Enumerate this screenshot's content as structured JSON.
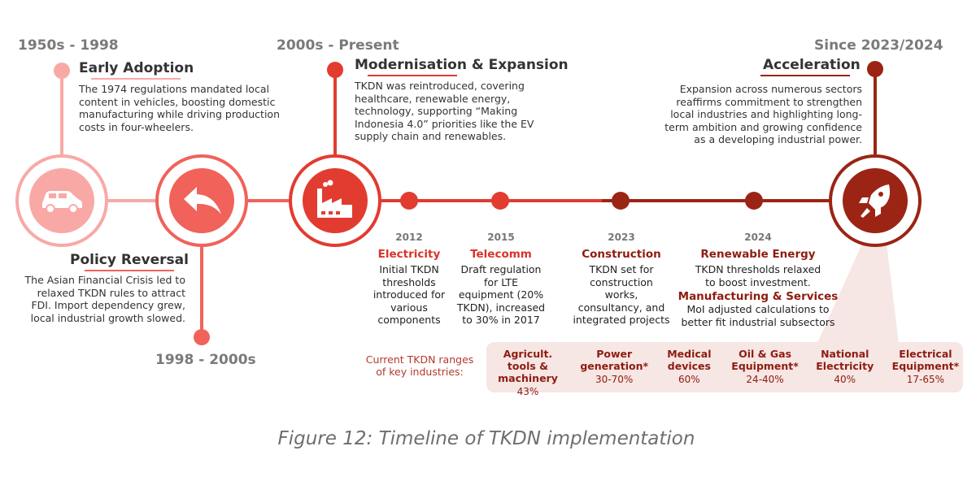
{
  "colors": {
    "stage1": "#f8a9a6",
    "stage2": "#f0625a",
    "stage3": "#e23b30",
    "stage4": "#9b2414",
    "heading_red": "#d93329",
    "heading_dark": "#8e1c10",
    "callout_bg": "#f6e6e4"
  },
  "stages": [
    {
      "era": "1950s - 1998",
      "title": "Early Adoption",
      "icon": "car-icon",
      "desc": "The 1974 regulations mandated local content in vehicles, boosting domestic manufacturing while driving production costs in four-wheelers."
    },
    {
      "era": "1998 - 2000s",
      "title": "Policy Reversal",
      "icon": "reply-arrow-icon",
      "desc": "The Asian Financial Crisis led to relaxed TKDN rules to attract FDI. Import dependency grew, local industrial growth slowed."
    },
    {
      "era": "2000s - Present",
      "title": "Modernisation & Expansion",
      "icon": "factory-icon",
      "desc": "TKDN was reintroduced, covering healthcare, renewable energy, technology, supporting “Making Indonesia 4.0” priorities like the EV supply chain and renewables."
    },
    {
      "era": "Since 2023/2024",
      "title": "Acceleration",
      "icon": "rocket-icon",
      "desc": "Expansion across numerous sectors reaffirms commitment to strengthen local industries and highlighting long-term ambition and growing confidence as a developing industrial power."
    }
  ],
  "milestones": [
    {
      "year": "2012",
      "heading": "Electricity",
      "body": "Initial TKDN thresholds introduced for various components"
    },
    {
      "year": "2015",
      "heading": "Telecomm",
      "body": "Draft regulation for LTE equipment (20% TKDN), increased to 30% in 2017"
    },
    {
      "year": "2023",
      "heading": "Construction",
      "body": "TKDN set for construction works, consultancy, and integrated projects"
    },
    {
      "year": "2024",
      "heading": "Renewable Energy",
      "body": "TKDN thresholds relaxed to boost investment.",
      "heading2": "Manufacturing & Services",
      "body2": "MoI adjusted calculations to better fit industrial subsectors"
    }
  ],
  "ranges": {
    "label": "Current TKDN ranges of key industries:",
    "items": [
      {
        "name": "Agricult. tools & machinery",
        "value": "43%"
      },
      {
        "name": "Power generation*",
        "value": "30-70%"
      },
      {
        "name": "Medical devices",
        "value": "60%"
      },
      {
        "name": "Oil & Gas Equipment*",
        "value": "24-40%"
      },
      {
        "name": "National Electricity",
        "value": "40%"
      },
      {
        "name": "Electrical Equipment*",
        "value": "17-65%"
      }
    ]
  },
  "caption": "Figure 12: Timeline of TKDN implementation"
}
